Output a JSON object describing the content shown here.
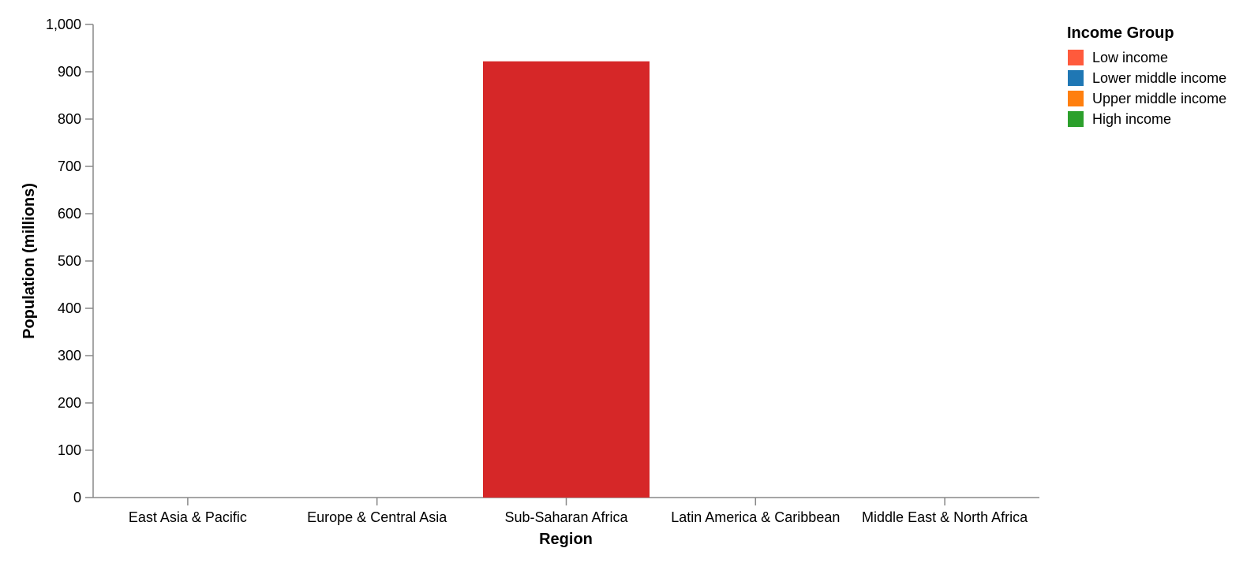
{
  "chart_data": {
    "type": "bar",
    "xlabel": "Region",
    "ylabel": "Population (millions)",
    "categories": [
      "East Asia & Pacific",
      "Europe & Central Asia",
      "Sub-Saharan Africa",
      "Latin America & Caribbean",
      "Middle East & North Africa"
    ],
    "ylim": [
      0,
      1000
    ],
    "y_ticks": [
      0,
      100,
      200,
      300,
      400,
      500,
      600,
      700,
      800,
      900,
      1000
    ],
    "y_tick_labels": [
      "0",
      "100",
      "200",
      "300",
      "400",
      "500",
      "600",
      "700",
      "800",
      "900",
      "1,000"
    ],
    "bar_color": "#d62728",
    "values": [
      0,
      0,
      922,
      0,
      0
    ],
    "grid": false,
    "legend": {
      "title": "Income Group",
      "placement": "right",
      "entries": [
        {
          "label": "Low income",
          "color": "#ff5a3c"
        },
        {
          "label": "Lower middle income",
          "color": "#1f77b4"
        },
        {
          "label": "Upper middle income",
          "color": "#ff7f0e"
        },
        {
          "label": "High income",
          "color": "#2ca02c"
        }
      ]
    }
  }
}
